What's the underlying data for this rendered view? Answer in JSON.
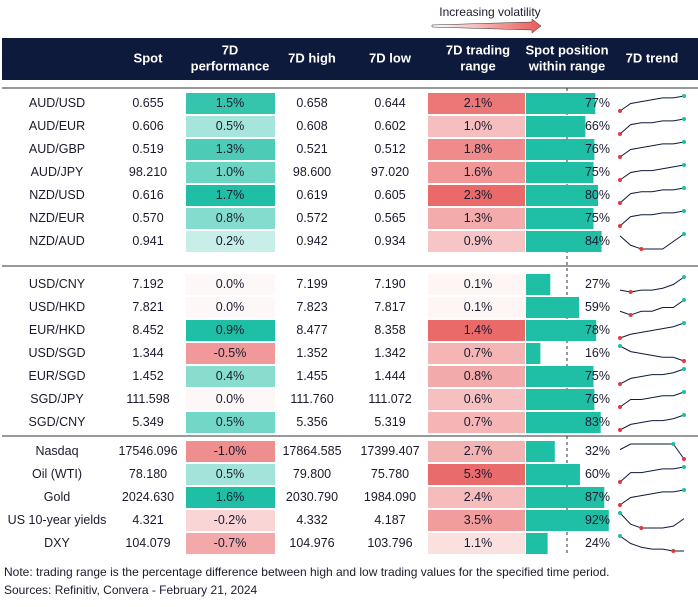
{
  "legend": "Increasing volatility",
  "columns": [
    [
      "Spot"
    ],
    [
      "7D",
      "performance"
    ],
    [
      "7D high"
    ],
    [
      "7D low"
    ],
    [
      "7D trading",
      "range"
    ],
    [
      "Spot position",
      "within range"
    ],
    [
      "7D trend"
    ]
  ],
  "groups": [
    [
      [
        "AUD/USD",
        "0.655",
        "1.5%",
        "0.658",
        "0.644",
        "2.1%",
        "77%",
        [
          1,
          5,
          6,
          7,
          8,
          8,
          9
        ]
      ],
      [
        "AUD/EUR",
        "0.606",
        "0.5%",
        "0.608",
        "0.602",
        "1.0%",
        "66%",
        [
          1,
          6,
          7,
          7,
          8,
          8,
          9
        ]
      ],
      [
        "AUD/GBP",
        "0.519",
        "1.3%",
        "0.521",
        "0.512",
        "1.8%",
        "76%",
        [
          1,
          5,
          6,
          7,
          8,
          8,
          9
        ]
      ],
      [
        "AUD/JPY",
        "98.210",
        "1.0%",
        "98.600",
        "97.020",
        "1.6%",
        "75%",
        [
          1,
          5,
          6,
          6,
          7,
          8,
          9
        ]
      ],
      [
        "NZD/USD",
        "0.616",
        "1.7%",
        "0.619",
        "0.605",
        "2.3%",
        "80%",
        [
          1,
          6,
          7,
          7,
          8,
          8,
          9
        ]
      ],
      [
        "NZD/EUR",
        "0.570",
        "0.8%",
        "0.572",
        "0.565",
        "1.3%",
        "75%",
        [
          1,
          6,
          7,
          7,
          8,
          8,
          9
        ]
      ],
      [
        "NZD/AUD",
        "0.941",
        "0.2%",
        "0.942",
        "0.934",
        "0.9%",
        "84%",
        [
          8,
          3,
          1,
          1,
          1,
          5,
          9
        ]
      ]
    ],
    [
      [
        "USD/CNY",
        "7.192",
        "0.0%",
        "7.199",
        "7.190",
        "0.1%",
        "27%",
        [
          2,
          1,
          2,
          2,
          3,
          5,
          9
        ]
      ],
      [
        "USD/HKD",
        "7.821",
        "0.0%",
        "7.823",
        "7.817",
        "0.1%",
        "59%",
        [
          3,
          1,
          3,
          3,
          5,
          5,
          9
        ]
      ],
      [
        "EUR/HKD",
        "8.452",
        "0.9%",
        "8.477",
        "8.358",
        "1.4%",
        "78%",
        [
          1,
          3,
          4,
          5,
          6,
          7,
          9
        ]
      ],
      [
        "USD/SGD",
        "1.344",
        "-0.5%",
        "1.352",
        "1.342",
        "0.7%",
        "16%",
        [
          9,
          6,
          5,
          4,
          3,
          3,
          1
        ]
      ],
      [
        "EUR/SGD",
        "1.452",
        "0.4%",
        "1.455",
        "1.444",
        "0.8%",
        "75%",
        [
          1,
          4,
          5,
          6,
          6,
          7,
          9
        ]
      ],
      [
        "SGD/JPY",
        "111.598",
        "0.0%",
        "111.760",
        "111.072",
        "0.6%",
        "76%",
        [
          1,
          5,
          5,
          6,
          7,
          7,
          9
        ]
      ],
      [
        "SGD/CNY",
        "5.349",
        "0.5%",
        "5.356",
        "5.319",
        "0.7%",
        "83%",
        [
          1,
          4,
          5,
          6,
          6,
          7,
          9
        ]
      ]
    ],
    [
      [
        "Nasdaq",
        "17546.096",
        "-1.0%",
        "17864.585",
        "17399.407",
        "2.7%",
        "32%",
        [
          6,
          9,
          9,
          9,
          9,
          9,
          1
        ]
      ],
      [
        "Oil (WTI)",
        "78.180",
        "0.5%",
        "79.800",
        "75.780",
        "5.3%",
        "60%",
        [
          1,
          6,
          6,
          7,
          8,
          8,
          9
        ]
      ],
      [
        "Gold",
        "2024.630",
        "1.6%",
        "2030.790",
        "1984.090",
        "2.4%",
        "87%",
        [
          1,
          5,
          6,
          7,
          8,
          8,
          9
        ]
      ],
      [
        "US 10-year yields",
        "4.321",
        "-0.2%",
        "4.332",
        "4.187",
        "3.5%",
        "92%",
        [
          9,
          3,
          1,
          1,
          1,
          2,
          6
        ]
      ],
      [
        "DXY",
        "104.079",
        "-0.7%",
        "104.976",
        "103.796",
        "1.1%",
        "24%",
        [
          9,
          5,
          3,
          2,
          2,
          1,
          1
        ]
      ]
    ]
  ],
  "notes": [
    "Note: trading range is the percentage difference between high and low trading values for the specified time period.",
    "Sources: Refinitiv, Convera - February 21, 2024"
  ]
}
